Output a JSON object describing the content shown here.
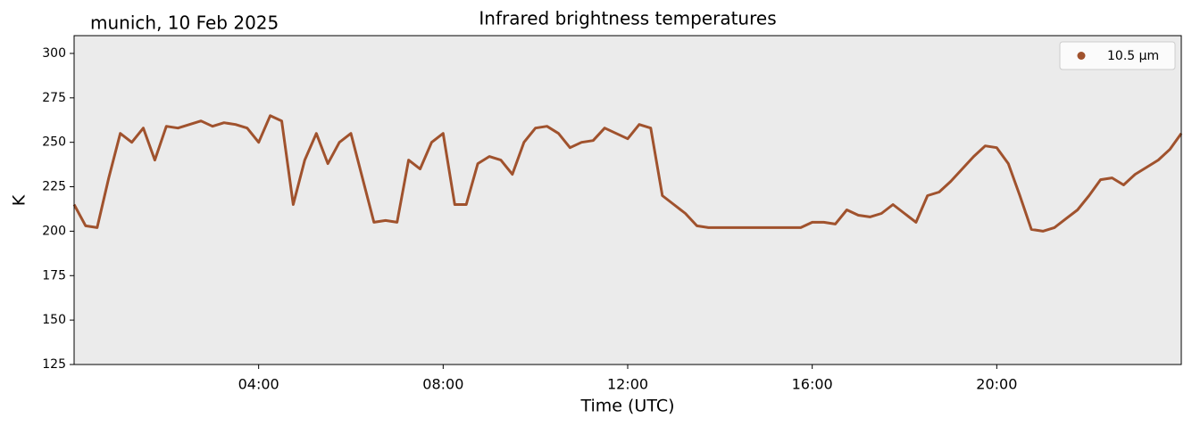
{
  "chart_data": {
    "type": "line",
    "title": "Infrared brightness temperatures",
    "annotation": "munich, 10 Feb 2025",
    "x_label": "Time (UTC)",
    "y_label": "K",
    "xlim": [
      0,
      24
    ],
    "ylim": [
      125,
      310
    ],
    "xticks": [
      {
        "value": 4,
        "label": "04:00"
      },
      {
        "value": 8,
        "label": "08:00"
      },
      {
        "value": 12,
        "label": "12:00"
      },
      {
        "value": 16,
        "label": "16:00"
      },
      {
        "value": 20,
        "label": "20:00"
      }
    ],
    "yticks": [
      125,
      150,
      175,
      200,
      225,
      250,
      275,
      300
    ],
    "legend": "upper right",
    "background": "#ebebeb",
    "series": [
      {
        "name": "10.5 µm",
        "color": "#a0522d",
        "x": [
          0,
          0.25,
          0.5,
          0.75,
          1,
          1.25,
          1.5,
          1.75,
          2,
          2.25,
          2.5,
          2.75,
          3,
          3.25,
          3.5,
          3.75,
          4,
          4.25,
          4.5,
          4.75,
          5,
          5.25,
          5.5,
          5.75,
          6,
          6.25,
          6.5,
          6.75,
          7,
          7.25,
          7.5,
          7.75,
          8,
          8.25,
          8.5,
          8.75,
          9,
          9.25,
          9.5,
          9.75,
          10,
          10.25,
          10.5,
          10.75,
          11,
          11.25,
          11.5,
          11.75,
          12,
          12.25,
          12.5,
          12.75,
          13,
          13.25,
          13.5,
          13.75,
          14,
          14.25,
          14.5,
          14.75,
          15,
          15.25,
          15.5,
          15.75,
          16,
          16.25,
          16.5,
          16.75,
          17,
          17.25,
          17.5,
          17.75,
          18,
          18.25,
          18.5,
          18.75,
          19,
          19.25,
          19.5,
          19.75,
          20,
          20.25,
          20.5,
          20.75,
          21,
          21.25,
          21.5,
          21.75,
          22,
          22.25,
          22.5,
          22.75,
          23,
          23.25,
          23.5,
          23.75,
          24
        ],
        "values": [
          215,
          203,
          202,
          230,
          255,
          250,
          258,
          240,
          259,
          258,
          260,
          262,
          259,
          261,
          260,
          258,
          250,
          265,
          262,
          215,
          240,
          255,
          238,
          250,
          255,
          230,
          205,
          206,
          205,
          240,
          235,
          250,
          255,
          215,
          215,
          238,
          242,
          240,
          232,
          250,
          258,
          259,
          255,
          247,
          250,
          251,
          258,
          255,
          252,
          260,
          258,
          220,
          215,
          210,
          203,
          202,
          202,
          202,
          202,
          202,
          202,
          202,
          202,
          202,
          205,
          205,
          204,
          212,
          209,
          208,
          210,
          215,
          210,
          205,
          220,
          222,
          228,
          235,
          242,
          248,
          247,
          238,
          220,
          201,
          200,
          202,
          207,
          212,
          220,
          229,
          230,
          226,
          232,
          236,
          240,
          246,
          255
        ]
      }
    ]
  }
}
